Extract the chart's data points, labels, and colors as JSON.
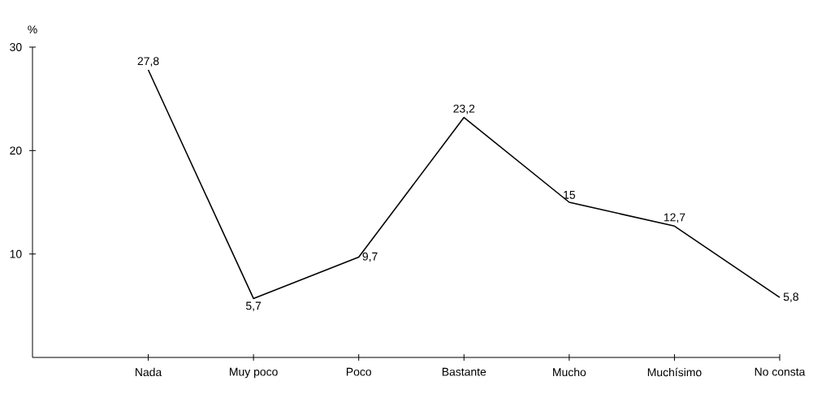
{
  "chart_data": {
    "type": "line",
    "ylabel": "%",
    "categories": [
      "Nada",
      "Muy poco",
      "Poco",
      "Bastante",
      "Mucho",
      "Muchísimo",
      "No consta"
    ],
    "values": [
      27.8,
      5.7,
      9.7,
      23.2,
      15,
      12.7,
      5.8
    ],
    "value_labels": [
      "27,8",
      "5,7",
      "9,7",
      "23,2",
      "15",
      "12,7",
      "5,8"
    ],
    "color": "#000000",
    "ylim": [
      0,
      30
    ],
    "yticks": [
      10,
      20,
      30
    ]
  }
}
